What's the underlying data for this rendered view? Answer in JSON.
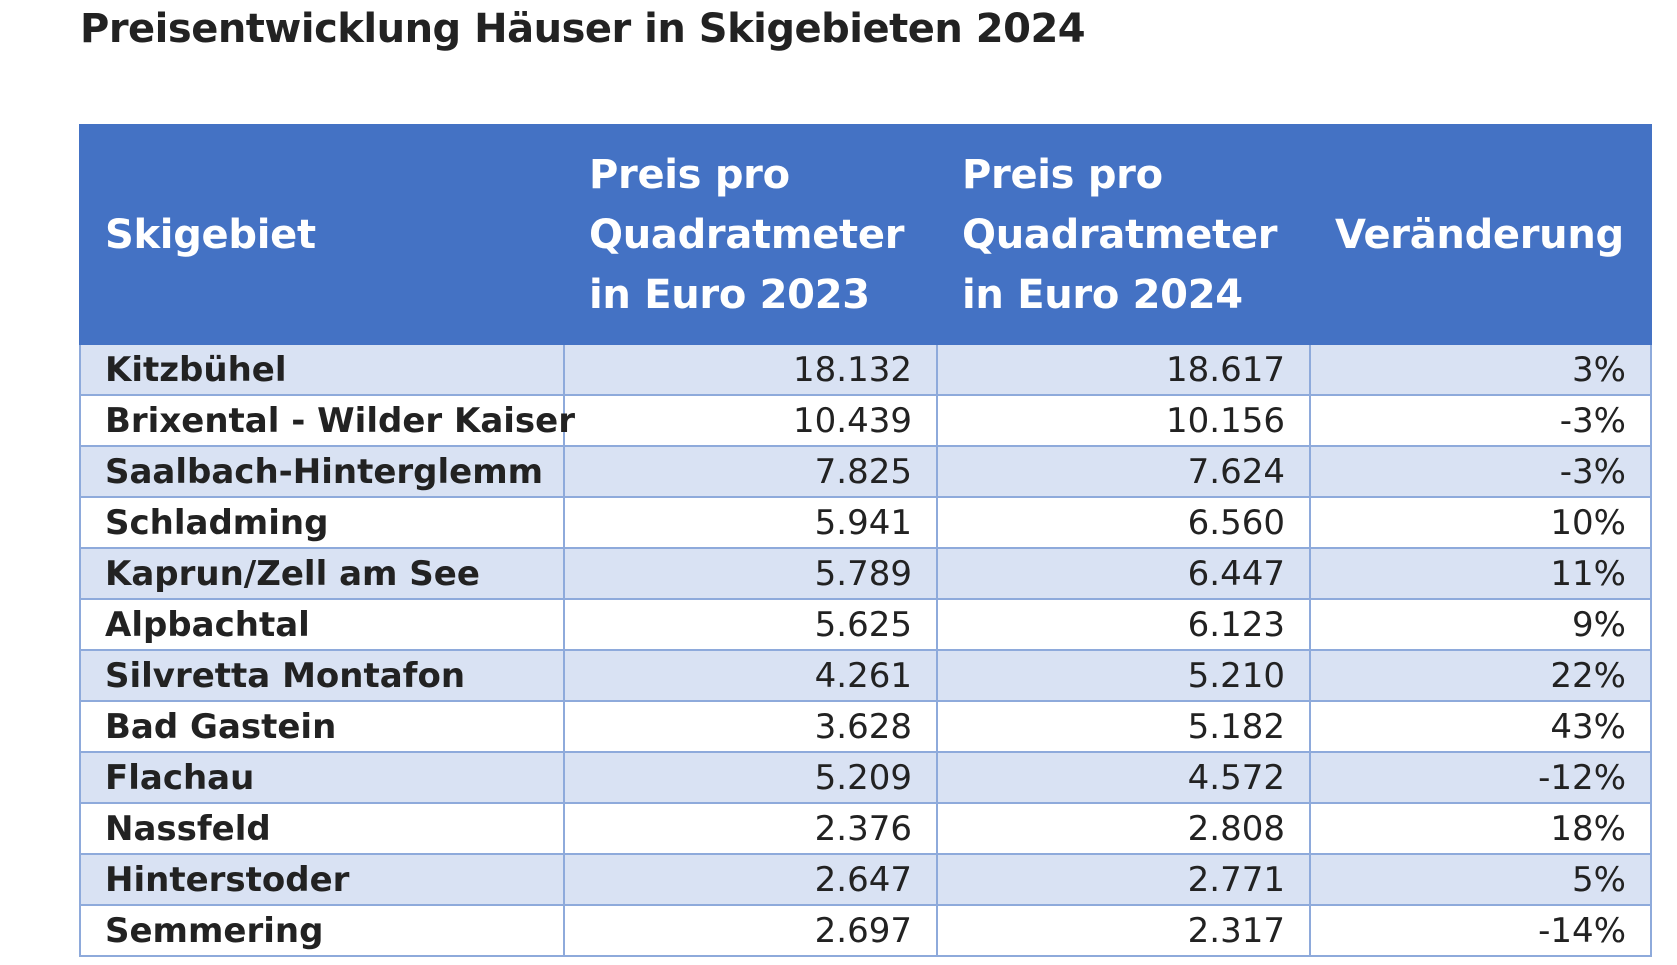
{
  "title": "Preisentwicklung Häuser in Skigebieten 2024",
  "header": {
    "col1": "Skigebiet",
    "col2": [
      "Preis pro",
      "Quadratmeter",
      "in Euro 2023"
    ],
    "col3": [
      "Preis pro",
      "Quadratmeter",
      "in Euro 2024"
    ],
    "col4": "Veränderung"
  },
  "rows": [
    {
      "name": "Kitzbühel",
      "p2023": "18.132",
      "p2024": "18.617",
      "change": "3%"
    },
    {
      "name": "Brixental - Wilder Kaiser",
      "p2023": "10.439",
      "p2024": "10.156",
      "change": "-3%"
    },
    {
      "name": "Saalbach-Hinterglemm",
      "p2023": "7.825",
      "p2024": "7.624",
      "change": "-3%"
    },
    {
      "name": "Schladming",
      "p2023": "5.941",
      "p2024": "6.560",
      "change": "10%"
    },
    {
      "name": "Kaprun/Zell am See",
      "p2023": "5.789",
      "p2024": "6.447",
      "change": "11%"
    },
    {
      "name": "Alpbachtal",
      "p2023": "5.625",
      "p2024": "6.123",
      "change": "9%"
    },
    {
      "name": "Silvretta Montafon",
      "p2023": "4.261",
      "p2024": "5.210",
      "change": "22%"
    },
    {
      "name": "Bad Gastein",
      "p2023": "3.628",
      "p2024": "5.182",
      "change": "43%"
    },
    {
      "name": "Flachau",
      "p2023": "5.209",
      "p2024": "4.572",
      "change": "-12%"
    },
    {
      "name": "Nassfeld",
      "p2023": "2.376",
      "p2024": "2.808",
      "change": "18%"
    },
    {
      "name": "Hinterstoder",
      "p2023": "2.647",
      "p2024": "2.771",
      "change": "5%"
    },
    {
      "name": "Semmering",
      "p2023": "2.697",
      "p2024": "2.317",
      "change": "-14%"
    }
  ],
  "colors": {
    "header_bg": "#4472c4",
    "header_text": "#ffffff",
    "band_row": "#d9e2f3",
    "plain_row": "#ffffff",
    "grid": "#8eaadb"
  }
}
